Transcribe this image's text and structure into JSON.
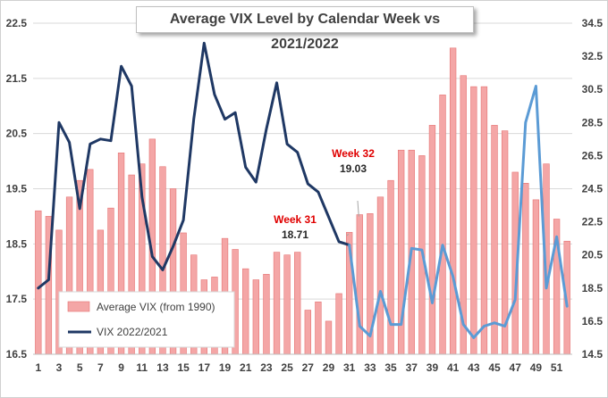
{
  "chart_data": {
    "type": "bar+line",
    "title": "Average VIX Level by Calendar Week vs 2021/2022",
    "x": [
      1,
      2,
      3,
      4,
      5,
      6,
      7,
      8,
      9,
      10,
      11,
      12,
      13,
      14,
      15,
      16,
      17,
      18,
      19,
      20,
      21,
      22,
      23,
      24,
      25,
      26,
      27,
      28,
      29,
      30,
      31,
      32,
      33,
      34,
      35,
      36,
      37,
      38,
      39,
      40,
      41,
      42,
      43,
      44,
      45,
      46,
      47,
      48,
      49,
      50,
      51,
      52
    ],
    "xtick_labels": [
      "1",
      "3",
      "5",
      "7",
      "9",
      "11",
      "13",
      "15",
      "17",
      "19",
      "21",
      "23",
      "25",
      "27",
      "29",
      "31",
      "33",
      "35",
      "37",
      "39",
      "41",
      "43",
      "45",
      "47",
      "49",
      "51"
    ],
    "left_axis": {
      "ylim": [
        16.5,
        22.5
      ],
      "ticks": [
        "16.5",
        "17.5",
        "18.5",
        "19.5",
        "20.5",
        "21.5",
        "22.5"
      ]
    },
    "right_axis": {
      "ylim": [
        14.5,
        34.5
      ],
      "ticks": [
        "14.5",
        "16.5",
        "18.5",
        "20.5",
        "22.5",
        "24.5",
        "26.5",
        "28.5",
        "30.5",
        "32.5",
        "34.5"
      ]
    },
    "series": [
      {
        "name": "Average VIX (from 1990)",
        "kind": "bar",
        "axis": "left",
        "color": "#f4a6a6",
        "values": [
          19.1,
          19.0,
          18.75,
          19.35,
          19.65,
          19.85,
          18.75,
          19.15,
          20.15,
          19.75,
          19.95,
          20.4,
          19.9,
          19.5,
          18.7,
          18.3,
          17.85,
          17.9,
          18.6,
          18.4,
          18.05,
          17.85,
          17.95,
          18.35,
          18.3,
          18.35,
          17.3,
          17.45,
          17.1,
          17.6,
          18.71,
          19.03,
          19.05,
          19.35,
          19.65,
          20.2,
          20.2,
          20.1,
          20.65,
          21.2,
          22.05,
          21.55,
          21.35,
          21.35,
          20.65,
          20.55,
          19.8,
          19.6,
          19.3,
          19.95,
          18.95,
          18.55
        ]
      },
      {
        "name": "VIX 2022/2021",
        "kind": "line",
        "axis": "right",
        "color": "#1f3864",
        "highlight_color": "#5b9bd5",
        "highlight_from_index": 30,
        "values": [
          18.5,
          19.0,
          28.5,
          27.3,
          23.3,
          27.2,
          27.5,
          27.4,
          31.9,
          30.7,
          24.0,
          20.4,
          19.6,
          21.0,
          22.6,
          28.7,
          33.3,
          30.2,
          28.7,
          29.1,
          25.8,
          24.9,
          28.1,
          30.9,
          27.2,
          26.7,
          24.8,
          24.3,
          22.8,
          21.3,
          21.1,
          16.2,
          15.6,
          18.3,
          16.3,
          16.3,
          20.9,
          20.8,
          17.6,
          21.1,
          19.2,
          16.3,
          15.5,
          16.2,
          16.4,
          16.2,
          17.8,
          28.5,
          30.7,
          18.5,
          21.6,
          17.4
        ]
      }
    ],
    "annotations": [
      {
        "week": 31,
        "label": "Week 31",
        "value_text": "18.71"
      },
      {
        "week": 32,
        "label": "Week 32",
        "value_text": "19.03"
      }
    ],
    "legend_placement": "bottom-left",
    "grid": "horizontal"
  }
}
